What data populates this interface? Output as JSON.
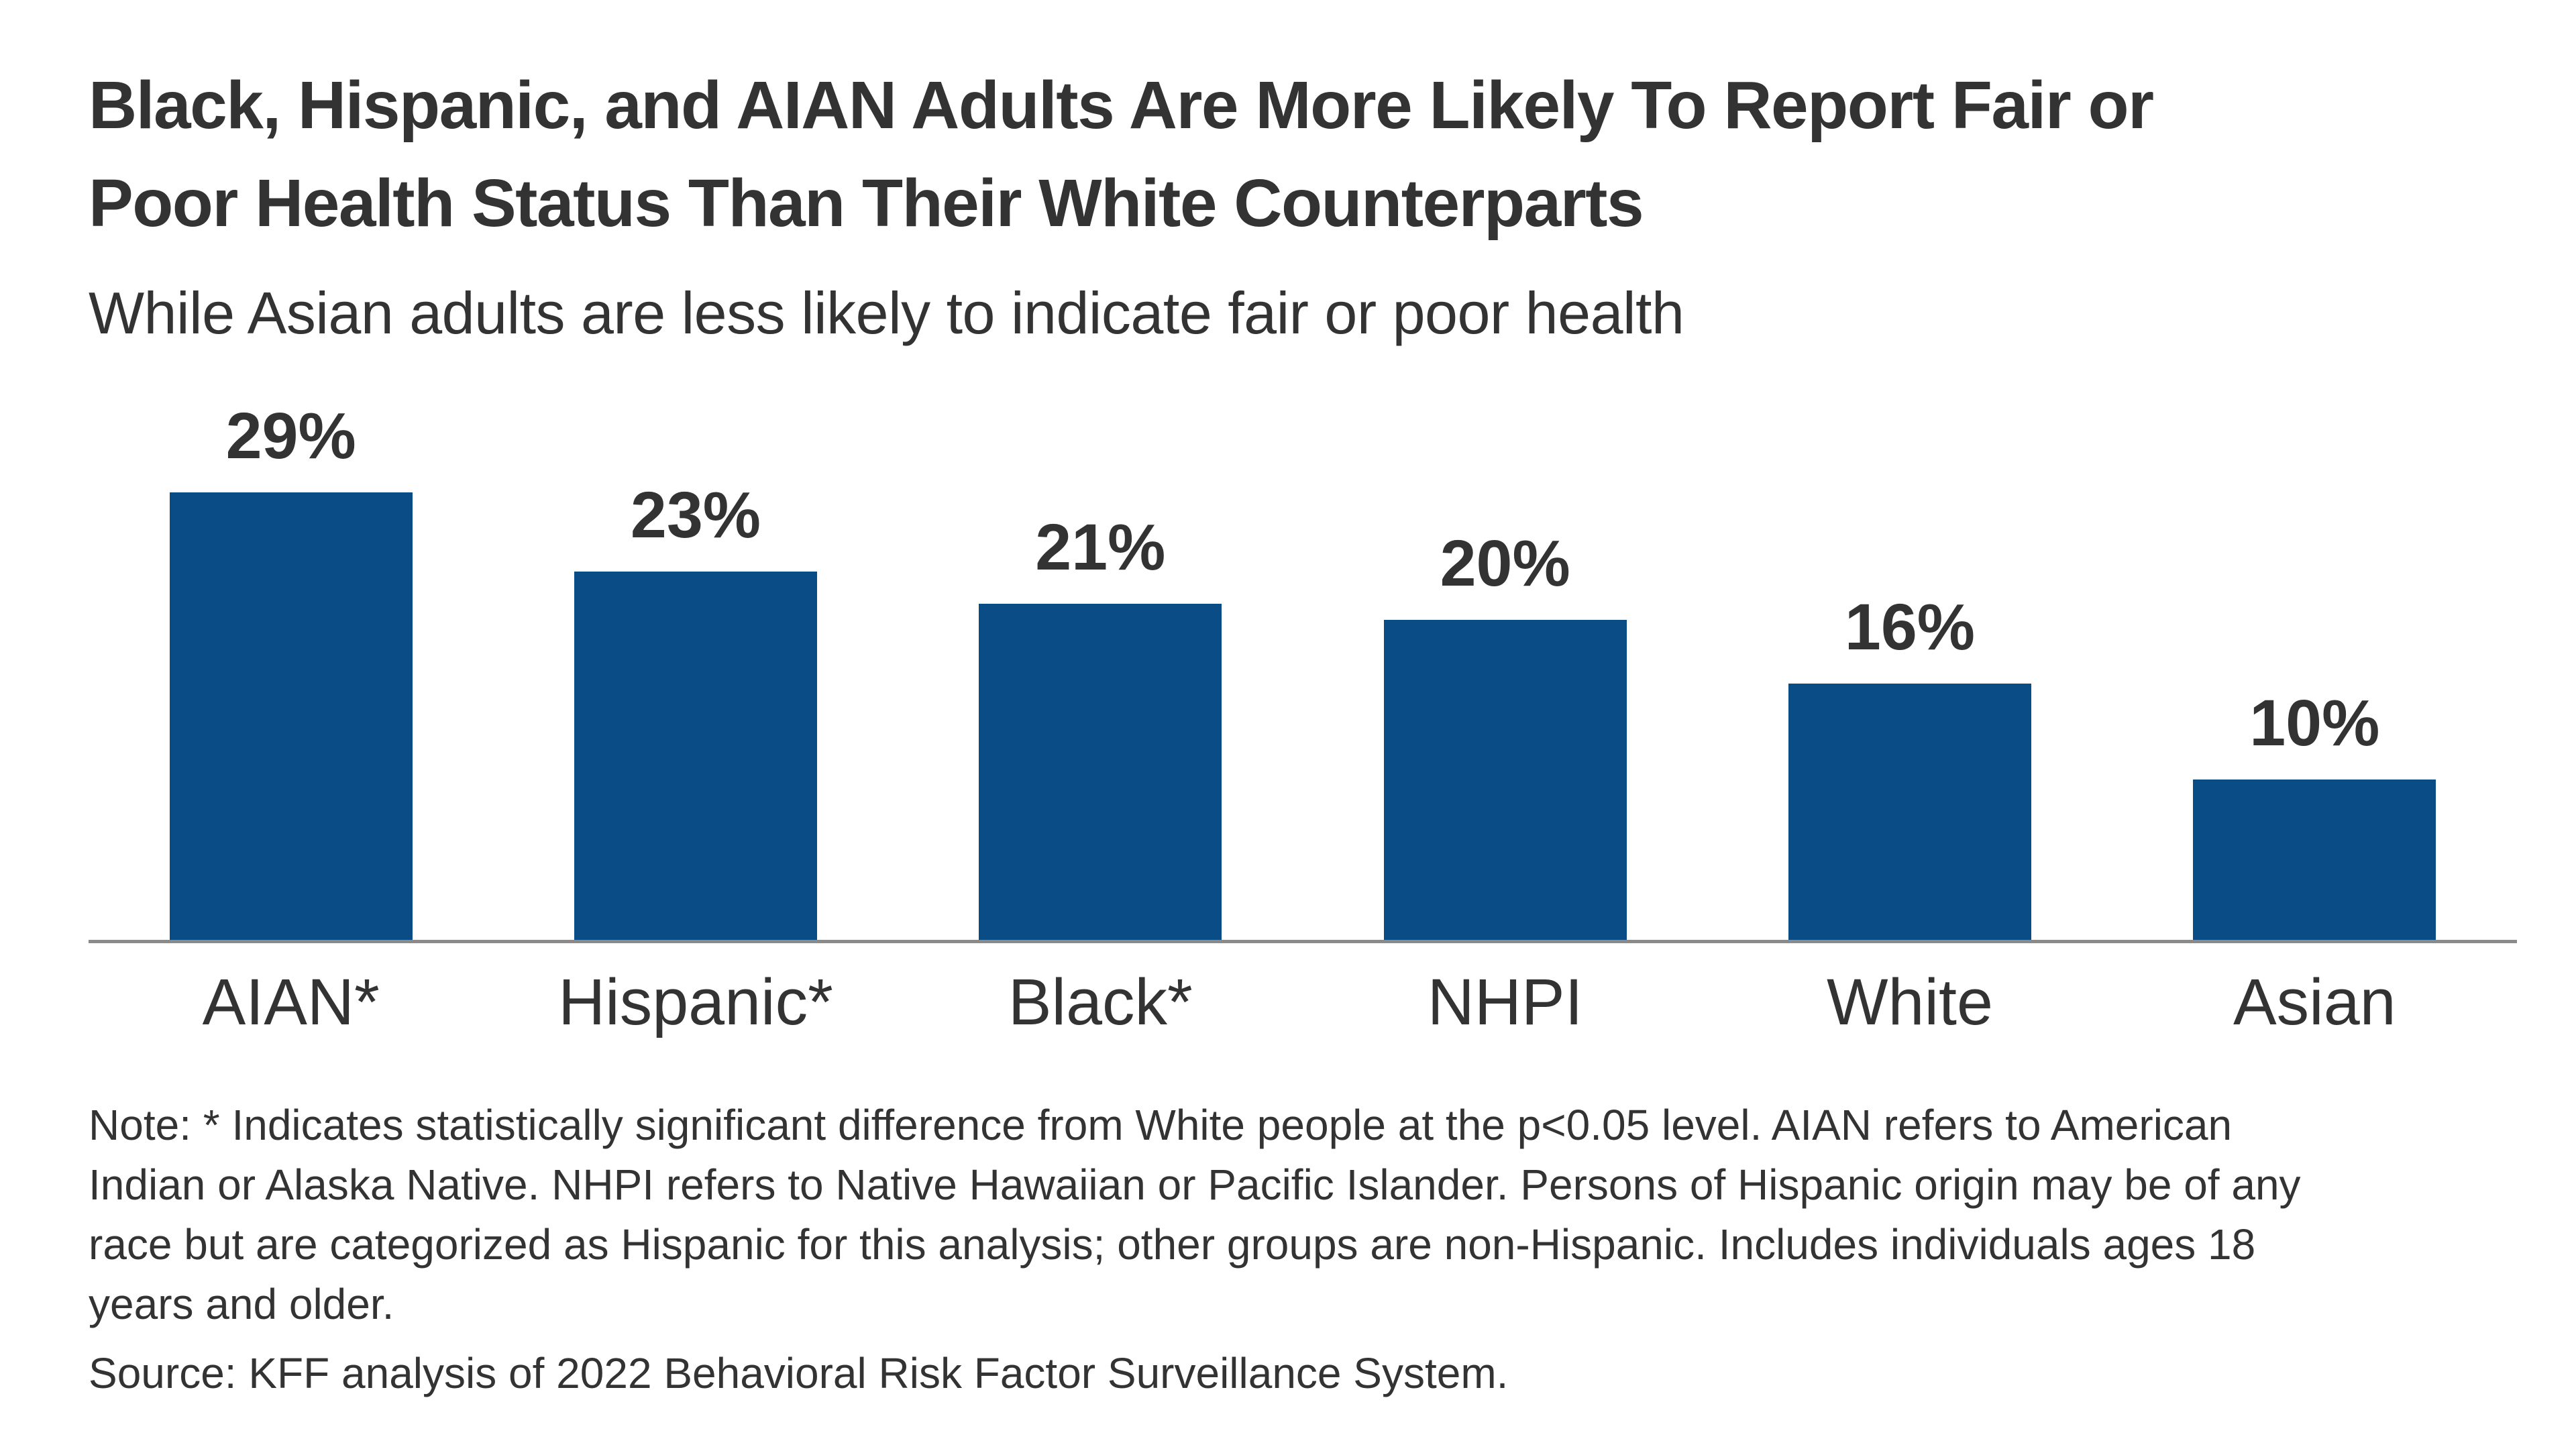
{
  "header": {
    "title_lines": [
      "Black, Hispanic, and AIAN Adults Are More Likely To Report Fair or",
      "Poor Health Status Than Their White Counterparts"
    ],
    "subtitle": "While Asian adults are less likely to indicate fair or poor health"
  },
  "chart_data": {
    "type": "bar",
    "title": "Black, Hispanic, and AIAN Adults Are More Likely To Report Fair or Poor Health Status Than Their White Counterparts",
    "subtitle": "While Asian adults are less likely to indicate fair or poor health",
    "categories": [
      "AIAN*",
      "Hispanic*",
      "Black*",
      "NHPI",
      "White",
      "Asian"
    ],
    "values": [
      29,
      23,
      21,
      20,
      16,
      10
    ],
    "value_labels": [
      "29%",
      "23%",
      "21%",
      "20%",
      "16%",
      "10%"
    ],
    "xlabel": "",
    "ylabel": "",
    "ylim": [
      0,
      30
    ],
    "grid": false,
    "legend": "none",
    "bar_color": "#0A4C86",
    "axis_line_color": "#8A8A8A",
    "text_color": "#333333"
  },
  "footer": {
    "note_lines": [
      "Note: * Indicates statistically significant difference from White people at the p<0.05 level. AIAN refers to American",
      "Indian or Alaska Native. NHPI refers to Native Hawaiian or Pacific Islander. Persons of Hispanic origin may be of any",
      "race but are categorized as Hispanic for this analysis; other groups are non-Hispanic. Includes individuals ages 18",
      "years and older."
    ],
    "source": "Source: KFF analysis of 2022 Behavioral Risk Factor Surveillance System."
  }
}
